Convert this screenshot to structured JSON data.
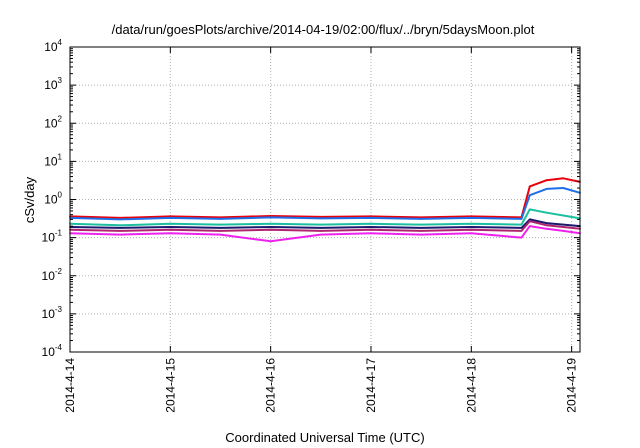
{
  "chart_data": {
    "type": "line",
    "title": "/data/run/goesPlots/archive/2014-04-19/02:00/flux/../bryn/5daysMoon.plot",
    "xlabel": "Coordinated Universal Time (UTC)",
    "ylabel": "cSv/day",
    "xscale": "time",
    "xlim": [
      "2014-04-14",
      "2014-04-19 02:00"
    ],
    "x_ticks": [
      "2014-4-14",
      "2014-4-15",
      "2014-4-16",
      "2014-4-17",
      "2014-4-18",
      "2014-4-19"
    ],
    "yscale": "log",
    "ylim": [
      0.0001,
      10000
    ],
    "y_ticks": [
      {
        "base": "10",
        "exp": "-4"
      },
      {
        "base": "10",
        "exp": "-3"
      },
      {
        "base": "10",
        "exp": "-2"
      },
      {
        "base": "10",
        "exp": "-1"
      },
      {
        "base": "10",
        "exp": "0"
      },
      {
        "base": "10",
        "exp": "1"
      },
      {
        "base": "10",
        "exp": "2"
      },
      {
        "base": "10",
        "exp": "3"
      },
      {
        "base": "10",
        "exp": "4"
      }
    ],
    "grid": true,
    "legend": "none",
    "series": [
      {
        "color": "#e8000b",
        "x": [
          "2014-04-14 00:00",
          "2014-04-14 12:00",
          "2014-04-15 00:00",
          "2014-04-15 12:00",
          "2014-04-16 00:00",
          "2014-04-16 12:00",
          "2014-04-17 00:00",
          "2014-04-17 12:00",
          "2014-04-18 00:00",
          "2014-04-18 12:00",
          "2014-04-18 14:00",
          "2014-04-18 18:00",
          "2014-04-18 22:00",
          "2014-04-19 02:00"
        ],
        "values": [
          0.36,
          0.33,
          0.36,
          0.34,
          0.37,
          0.35,
          0.36,
          0.34,
          0.36,
          0.34,
          2.2,
          3.2,
          3.6,
          2.9
        ]
      },
      {
        "color": "#1f6fe8",
        "x": [
          "2014-04-14 00:00",
          "2014-04-14 12:00",
          "2014-04-15 00:00",
          "2014-04-15 12:00",
          "2014-04-16 00:00",
          "2014-04-16 12:00",
          "2014-04-17 00:00",
          "2014-04-17 12:00",
          "2014-04-18 00:00",
          "2014-04-18 12:00",
          "2014-04-18 14:00",
          "2014-04-18 18:00",
          "2014-04-18 22:00",
          "2014-04-19 02:00"
        ],
        "values": [
          0.33,
          0.3,
          0.33,
          0.31,
          0.34,
          0.32,
          0.33,
          0.31,
          0.33,
          0.31,
          1.3,
          1.9,
          2.0,
          1.5
        ]
      },
      {
        "color": "#1bbfa0",
        "x": [
          "2014-04-14 00:00",
          "2014-04-14 12:00",
          "2014-04-15 00:00",
          "2014-04-15 12:00",
          "2014-04-16 00:00",
          "2014-04-16 12:00",
          "2014-04-17 00:00",
          "2014-04-17 12:00",
          "2014-04-18 00:00",
          "2014-04-18 12:00",
          "2014-04-18 14:00",
          "2014-04-18 18:00",
          "2014-04-18 22:00",
          "2014-04-19 02:00"
        ],
        "values": [
          0.23,
          0.21,
          0.23,
          0.22,
          0.23,
          0.22,
          0.23,
          0.22,
          0.23,
          0.22,
          0.55,
          0.45,
          0.38,
          0.32
        ]
      },
      {
        "color": "#1a1a6e",
        "x": [
          "2014-04-14 00:00",
          "2014-04-14 12:00",
          "2014-04-15 00:00",
          "2014-04-15 12:00",
          "2014-04-16 00:00",
          "2014-04-16 12:00",
          "2014-04-17 00:00",
          "2014-04-17 12:00",
          "2014-04-18 00:00",
          "2014-04-18 12:00",
          "2014-04-18 14:00",
          "2014-04-18 18:00",
          "2014-04-18 22:00",
          "2014-04-19 02:00"
        ],
        "values": [
          0.19,
          0.18,
          0.19,
          0.18,
          0.19,
          0.18,
          0.19,
          0.18,
          0.19,
          0.18,
          0.3,
          0.24,
          0.22,
          0.2
        ]
      },
      {
        "color": "#b0246e",
        "x": [
          "2014-04-14 00:00",
          "2014-04-14 12:00",
          "2014-04-15 00:00",
          "2014-04-15 12:00",
          "2014-04-16 00:00",
          "2014-04-16 12:00",
          "2014-04-17 00:00",
          "2014-04-17 12:00",
          "2014-04-18 00:00",
          "2014-04-18 12:00",
          "2014-04-18 14:00",
          "2014-04-18 18:00",
          "2014-04-18 22:00",
          "2014-04-19 02:00"
        ],
        "values": [
          0.16,
          0.15,
          0.16,
          0.15,
          0.16,
          0.15,
          0.16,
          0.15,
          0.16,
          0.15,
          0.27,
          0.21,
          0.19,
          0.17
        ]
      },
      {
        "color": "#ee22ee",
        "x": [
          "2014-04-14 00:00",
          "2014-04-14 12:00",
          "2014-04-15 00:00",
          "2014-04-15 12:00",
          "2014-04-16 00:00",
          "2014-04-16 12:00",
          "2014-04-17 00:00",
          "2014-04-17 12:00",
          "2014-04-18 00:00",
          "2014-04-18 12:00",
          "2014-04-18 14:00",
          "2014-04-18 18:00",
          "2014-04-18 22:00",
          "2014-04-19 02:00"
        ],
        "values": [
          0.13,
          0.12,
          0.13,
          0.12,
          0.08,
          0.12,
          0.13,
          0.12,
          0.13,
          0.1,
          0.2,
          0.17,
          0.15,
          0.13
        ]
      }
    ]
  }
}
